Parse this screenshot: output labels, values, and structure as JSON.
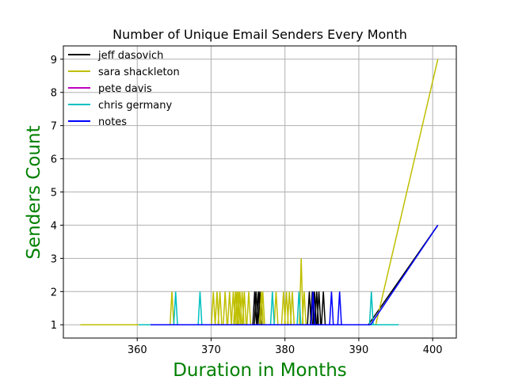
{
  "chart_data": {
    "type": "line",
    "title": "Number of Unique Email Senders Every Month",
    "xlabel": "Duration in Months",
    "ylabel": "Senders Count",
    "xlim": [
      350.0,
      403.2
    ],
    "ylim": [
      0.6,
      9.4
    ],
    "xticks": [
      360,
      370,
      380,
      390,
      400
    ],
    "yticks": [
      1,
      2,
      3,
      4,
      5,
      6,
      7,
      8,
      9
    ],
    "grid": true,
    "legend_position": "top-left",
    "series": [
      {
        "name": "jeff dasovich",
        "color": "#000000",
        "baseline_x": [
          375.8,
          391.3
        ],
        "spikes": [
          {
            "x": 375.9,
            "y": 2
          },
          {
            "x": 376.1,
            "y": 2
          },
          {
            "x": 376.4,
            "y": 2
          },
          {
            "x": 376.6,
            "y": 2
          },
          {
            "x": 383.3,
            "y": 2
          },
          {
            "x": 383.7,
            "y": 2
          },
          {
            "x": 384.0,
            "y": 2
          },
          {
            "x": 384.3,
            "y": 2
          },
          {
            "x": 384.6,
            "y": 2
          },
          {
            "x": 385.2,
            "y": 2
          }
        ],
        "tail": [
          [
            391.3,
            1
          ],
          [
            400.7,
            4
          ]
        ]
      },
      {
        "name": "sara shackleton",
        "color": "#bfbf00",
        "baseline_x": [
          352.3,
          392.3
        ],
        "spikes": [
          {
            "x": 364.7,
            "y": 2
          },
          {
            "x": 370.3,
            "y": 2
          },
          {
            "x": 370.8,
            "y": 2
          },
          {
            "x": 371.2,
            "y": 2
          },
          {
            "x": 371.9,
            "y": 2
          },
          {
            "x": 372.5,
            "y": 2
          },
          {
            "x": 373.0,
            "y": 2
          },
          {
            "x": 373.3,
            "y": 2
          },
          {
            "x": 373.5,
            "y": 2
          },
          {
            "x": 373.7,
            "y": 2
          },
          {
            "x": 373.9,
            "y": 2
          },
          {
            "x": 374.2,
            "y": 2
          },
          {
            "x": 374.5,
            "y": 2
          },
          {
            "x": 375.1,
            "y": 2
          },
          {
            "x": 376.8,
            "y": 2
          },
          {
            "x": 377.0,
            "y": 2
          },
          {
            "x": 378.8,
            "y": 2
          },
          {
            "x": 379.8,
            "y": 2
          },
          {
            "x": 380.2,
            "y": 2
          },
          {
            "x": 380.6,
            "y": 2
          },
          {
            "x": 381.0,
            "y": 2
          },
          {
            "x": 382.2,
            "y": 3
          },
          {
            "x": 382.6,
            "y": 2
          }
        ],
        "tail": [
          [
            392.3,
            1
          ],
          [
            400.7,
            9
          ]
        ]
      },
      {
        "name": "pete davis",
        "color": "#bf00bf",
        "baseline_x": [
          376.0,
          389.0
        ],
        "spikes": [],
        "tail": []
      },
      {
        "name": "chris germany",
        "color": "#00bfbf",
        "baseline_x": [
          360.2,
          395.4
        ],
        "spikes": [
          {
            "x": 365.2,
            "y": 2
          },
          {
            "x": 368.5,
            "y": 2
          },
          {
            "x": 378.3,
            "y": 2
          },
          {
            "x": 381.9,
            "y": 2
          },
          {
            "x": 391.7,
            "y": 2
          }
        ],
        "tail": []
      },
      {
        "name": "notes",
        "color": "#0000ff",
        "baseline_x": [
          361.8,
          391.6
        ],
        "spikes": [
          {
            "x": 383.8,
            "y": 2
          },
          {
            "x": 386.3,
            "y": 2
          },
          {
            "x": 387.4,
            "y": 2
          }
        ],
        "tail": [
          [
            391.6,
            1
          ],
          [
            400.7,
            4
          ]
        ]
      }
    ]
  }
}
